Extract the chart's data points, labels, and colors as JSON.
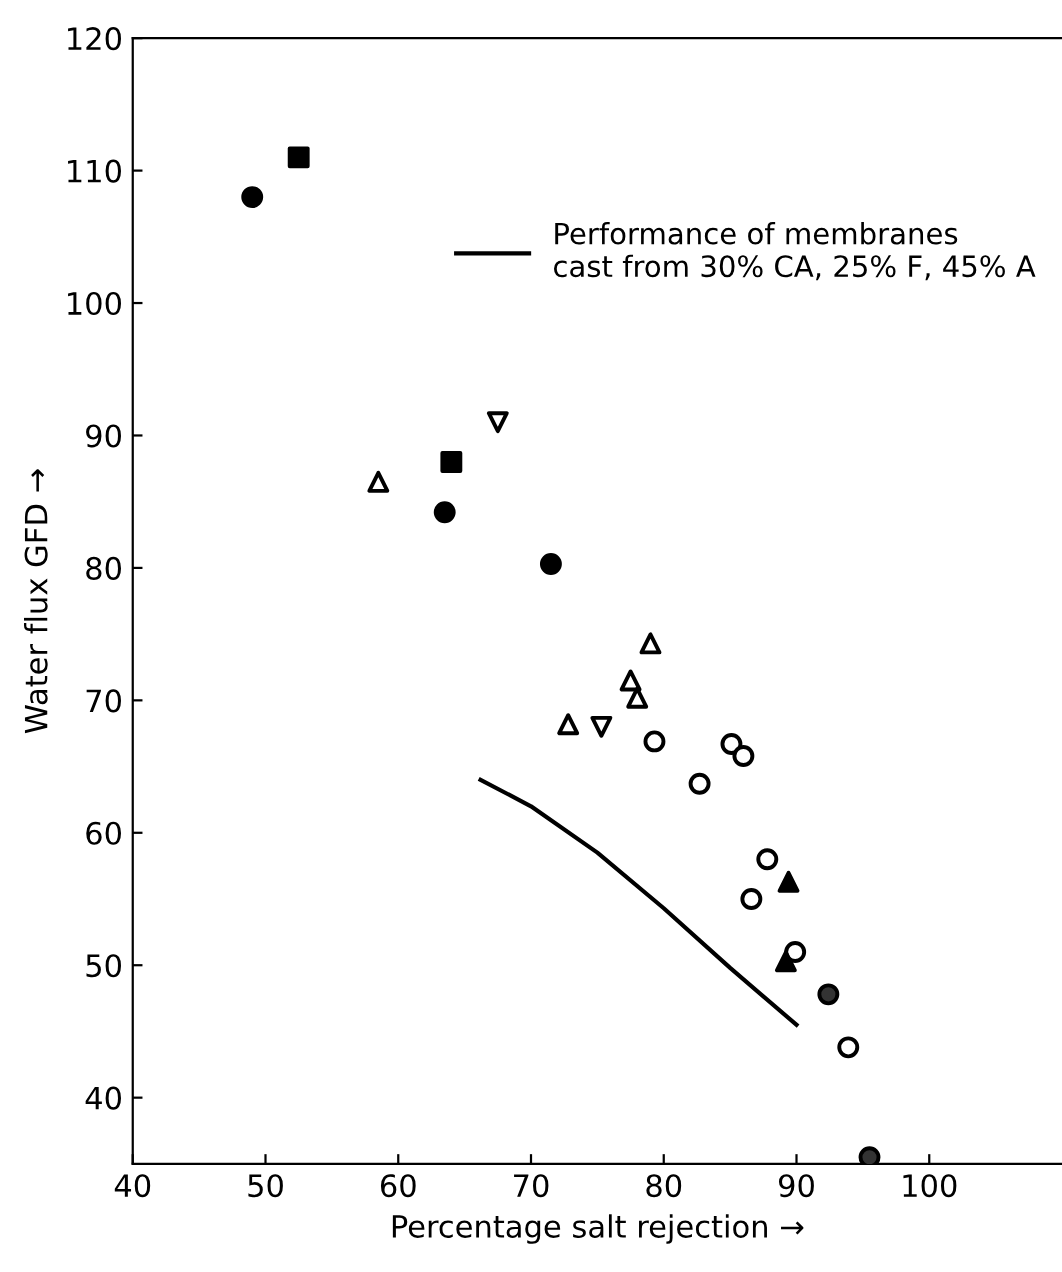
{
  "chart_data": {
    "type": "scatter",
    "xlabel": "Percentage salt rejection →",
    "ylabel": "Water flux GFD →",
    "xlim": [
      40,
      110
    ],
    "ylim": [
      35,
      120
    ],
    "xticks": [
      40,
      50,
      60,
      70,
      80,
      90,
      100
    ],
    "yticks": [
      40,
      50,
      60,
      70,
      80,
      90,
      100,
      110,
      120
    ],
    "grid": false,
    "legend": "top right",
    "series": [
      {
        "marker": "circle",
        "color": "#000000",
        "x": [
          49,
          63.5,
          71.5
        ],
        "values": [
          108,
          84.2,
          80.3
        ]
      },
      {
        "marker": "square",
        "color": "#000000",
        "x": [
          52.5,
          64
        ],
        "values": [
          111,
          88
        ]
      },
      {
        "marker": "triangle",
        "color": "#ffffff",
        "x": [
          58.5,
          72.8,
          77.5,
          78,
          79
        ],
        "values": [
          86.5,
          68.2,
          71.5,
          70.2,
          74.3
        ]
      },
      {
        "marker": "triangle_down",
        "color": "#ffffff",
        "x": [
          67.5,
          75.3
        ],
        "values": [
          91,
          68
        ]
      },
      {
        "marker": "circle",
        "color": "#ffffff",
        "x": [
          79.3,
          82.7,
          85.1,
          86,
          86.6,
          87.8,
          89.9,
          93.9
        ],
        "values": [
          66.9,
          63.7,
          66.7,
          65.8,
          55,
          58,
          51,
          43.8
        ]
      },
      {
        "marker": "triangle",
        "color": "#000000",
        "x": [
          89.4,
          89.2
        ],
        "values": [
          56.3,
          50.3
        ]
      },
      {
        "marker": "circle",
        "color": "#333333",
        "x": [
          92.4,
          95.5
        ],
        "values": [
          47.8,
          35.5
        ]
      },
      {
        "type": "line",
        "name": "Performance of membranes\ncast from 30% CA, 25% F, 45% A",
        "marker": "none",
        "line_style": "solid",
        "color": "#000000",
        "x": [
          66.2,
          70,
          75,
          80,
          85,
          90
        ],
        "values": [
          64,
          62,
          58.5,
          54.3,
          49.8,
          45.5
        ]
      }
    ]
  }
}
